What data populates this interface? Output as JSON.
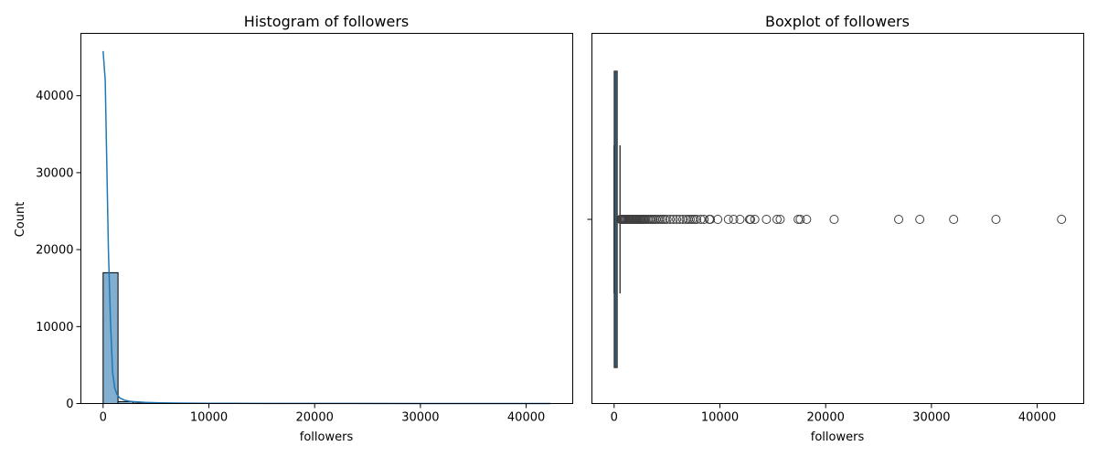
{
  "chart_data": [
    {
      "type": "histogram",
      "title": "Histogram of followers",
      "xlabel": "followers",
      "ylabel": "Count",
      "xlim": [
        -2100,
        44400
      ],
      "ylim": [
        0,
        48100
      ],
      "xticks": [
        0,
        10000,
        20000,
        30000,
        40000
      ],
      "xtick_labels": [
        "0",
        "10000",
        "20000",
        "30000",
        "40000"
      ],
      "yticks": [
        0,
        10000,
        20000,
        30000,
        40000
      ],
      "ytick_labels": [
        "0",
        "10000",
        "20000",
        "30000",
        "40000"
      ],
      "bin_width": 1410,
      "bin_start": 0,
      "counts": [
        17000,
        250,
        50,
        25,
        15,
        10,
        8,
        6,
        5,
        4,
        3,
        3,
        2,
        2,
        1,
        1,
        1,
        1,
        1,
        1,
        1,
        0,
        0,
        1,
        0,
        0,
        0,
        0,
        0,
        1
      ],
      "bar_color": "#82aed0",
      "bar_edge_color": "#000000",
      "kde": {
        "color": "#1f77b4",
        "x": [
          0,
          200,
          500,
          700,
          900,
          1100,
          1300,
          1600,
          2000,
          2500,
          3000,
          4000,
          5000,
          7000,
          10000,
          15000,
          20000,
          30000,
          42300
        ],
        "y": [
          45800,
          42000,
          20000,
          10500,
          4000,
          2000,
          1200,
          700,
          450,
          300,
          230,
          150,
          100,
          60,
          35,
          20,
          12,
          6,
          2
        ]
      }
    },
    {
      "type": "boxplot",
      "title": "Boxplot of followers",
      "xlabel": "followers",
      "xlim": [
        -2100,
        44400
      ],
      "xticks": [
        0,
        10000,
        20000,
        30000,
        40000
      ],
      "xtick_labels": [
        "0",
        "10000",
        "20000",
        "30000",
        "40000"
      ],
      "box_color": "#3f3f3f",
      "box_fill": "#1f77b4",
      "min": 0,
      "q1": 20,
      "median": 80,
      "q3": 280,
      "whisker_low": 0,
      "whisker_high": 560,
      "outliers": [
        600,
        650,
        700,
        760,
        820,
        900,
        980,
        1050,
        1150,
        1250,
        1350,
        1450,
        1550,
        1650,
        1750,
        1850,
        1950,
        2050,
        2150,
        2250,
        2350,
        2450,
        2550,
        2650,
        2750,
        2850,
        2950,
        3100,
        3250,
        3400,
        3550,
        3700,
        3850,
        4000,
        4200,
        4400,
        4600,
        4800,
        5000,
        5300,
        5600,
        5900,
        6200,
        6500,
        6800,
        7000,
        7200,
        7400,
        7600,
        7800,
        8200,
        8500,
        9000,
        9100,
        9800,
        10800,
        11300,
        11900,
        12800,
        12900,
        13300,
        14400,
        15400,
        15700,
        17400,
        17600,
        18200,
        20800,
        26900,
        28900,
        32100,
        36100,
        42300
      ]
    }
  ]
}
